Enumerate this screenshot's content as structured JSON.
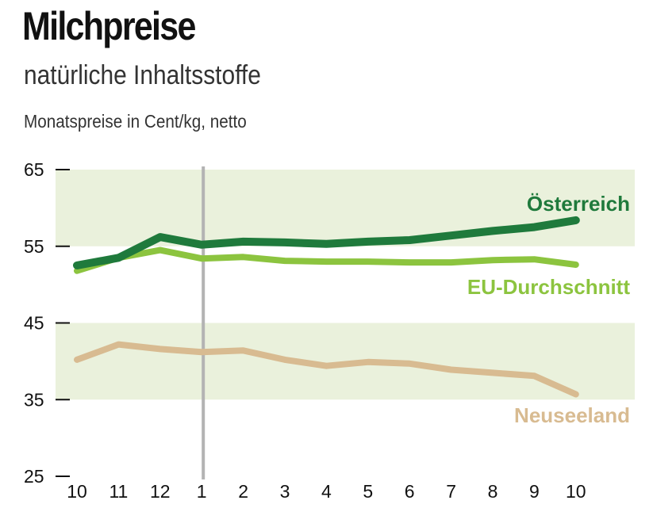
{
  "header": {
    "title": "Milchpreise",
    "subtitle": "natürliche Inhaltsstoffe",
    "unit_note": "Monatspreise in Cent/kg, netto"
  },
  "chart_data": {
    "type": "line",
    "title": "Milchpreise",
    "subtitle": "natürliche Inhaltsstoffe",
    "ylabel": "Monatspreise in Cent/kg, netto",
    "xlabel": "",
    "categories": [
      "10",
      "11",
      "12",
      "1",
      "2",
      "3",
      "4",
      "5",
      "6",
      "7",
      "8",
      "9",
      "10"
    ],
    "ylim": [
      25,
      65
    ],
    "yticks": [
      "65",
      "55",
      "45",
      "35",
      "25"
    ],
    "bands": [
      [
        35,
        45
      ],
      [
        55,
        65
      ]
    ],
    "year_divider_index": 3,
    "series": [
      {
        "name": "Österreich",
        "color": "#1f7a3c",
        "values": [
          52.5,
          53.5,
          56.2,
          55.2,
          55.6,
          55.5,
          55.3,
          55.6,
          55.8,
          56.4,
          57.0,
          57.5,
          58.4
        ]
      },
      {
        "name": "EU-Durchschnitt",
        "color": "#8cc43f",
        "values": [
          51.8,
          53.5,
          54.5,
          53.4,
          53.6,
          53.1,
          53.0,
          53.0,
          52.9,
          52.9,
          53.2,
          53.3,
          52.6
        ]
      },
      {
        "name": "Neuseeland",
        "color": "#d8bb91",
        "values": [
          40.2,
          42.2,
          41.6,
          41.2,
          41.4,
          40.2,
          39.4,
          39.9,
          39.7,
          38.9,
          38.5,
          38.1,
          35.7
        ]
      }
    ]
  }
}
